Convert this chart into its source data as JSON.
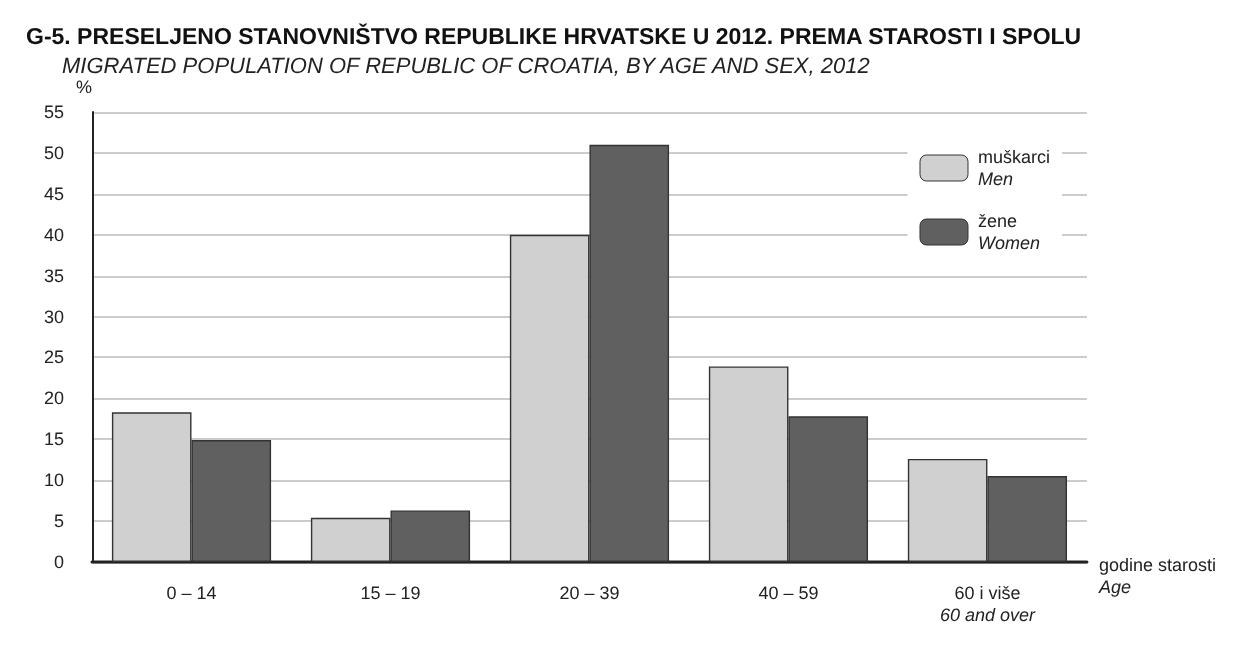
{
  "chart_data": {
    "type": "bar",
    "title": "G-5. PRESELJENO STANOVNIŠTVO REPUBLIKE HRVATSKE U 2012. PREMA STAROSTI I SPOLU",
    "subtitle": "MIGRATED POPULATION OF REPUBLIC OF CROATIA, BY AGE AND SEX, 2012",
    "ylabel": "%",
    "xlabel": "godine starosti\nAge",
    "categories": [
      "0 – 14",
      "15 – 19",
      "20 – 39",
      "40 – 59",
      "60 i više\n60 and over"
    ],
    "series": [
      {
        "name": "muškarci\nMen",
        "color": "#d0d0d0",
        "values": [
          18.3,
          5.4,
          40.0,
          23.9,
          12.6
        ]
      },
      {
        "name": "žene\nWomen",
        "color": "#606060",
        "values": [
          14.9,
          6.3,
          51.0,
          17.8,
          10.5
        ]
      }
    ],
    "ylim": [
      0,
      55
    ],
    "yticks": [
      0,
      5,
      10,
      15,
      20,
      25,
      30,
      35,
      40,
      45,
      50,
      55
    ],
    "grid": "y",
    "legend": "top right"
  }
}
